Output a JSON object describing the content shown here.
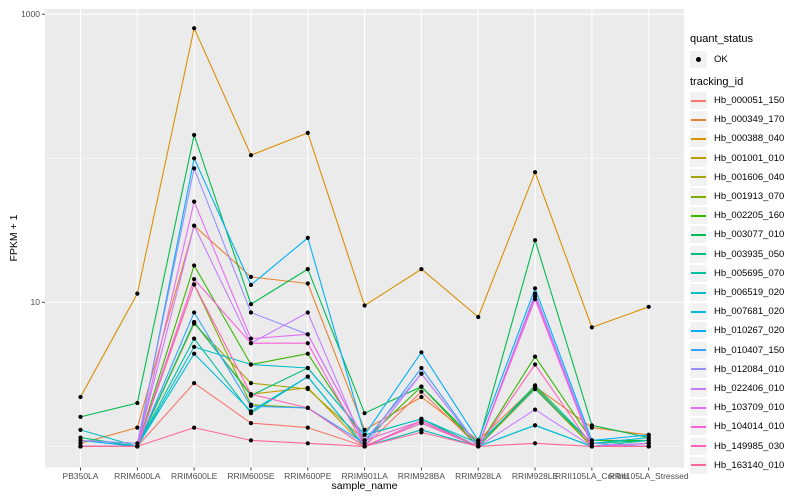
{
  "figure": {
    "y_axis_title": "FPKM + 1",
    "x_axis_title": "sample_name",
    "legend_quant_title": "quant_status",
    "legend_quant_ok_label": "OK",
    "legend_tracking_title": "tracking_id"
  },
  "colors": {
    "panel_background": "#EBEBEB",
    "gridline": "#FFFFFF",
    "tick_mark": "#333333",
    "tick_label": "#4d4d4d",
    "legend_key_background": "#F2F2F2",
    "point": "#000000"
  },
  "chart_data": {
    "type": "line",
    "title": "",
    "xlabel": "sample_name",
    "ylabel": "FPKM + 1",
    "y_scale": "log10",
    "ylim": [
      0.71,
      1100
    ],
    "y_ticks": [
      1000,
      10
    ],
    "y_minor_gridlines": [
      100,
      1
    ],
    "grid": true,
    "legend_position": "right",
    "point_marker": "filled-circle",
    "categories": [
      "PB350LA",
      "RRIM600LA",
      "RRIM600LE",
      "RRIM600SE",
      "RRIM600PE",
      "RRIM901LA",
      "RRIM928BA",
      "RRIM928LA",
      "RRIM928LE",
      "RRII105LA_Control",
      "RRII105LA_Stressed"
    ],
    "series": [
      {
        "name": "Hb_000051_150",
        "color": "#F8766D",
        "values": [
          1.0,
          1.0,
          2.75,
          1.45,
          1.35,
          1.0,
          2.4,
          1.0,
          2.5,
          1.0,
          1.0
        ]
      },
      {
        "name": "Hb_000349_170",
        "color": "#EA8331",
        "values": [
          1.05,
          1.35,
          34,
          15,
          13.5,
          1.3,
          2.2,
          1.1,
          2.6,
          1.35,
          1.2
        ]
      },
      {
        "name": "Hb_000388_040",
        "color": "#D89000",
        "values": [
          2.2,
          11.5,
          800,
          105,
          150,
          9.5,
          17,
          7.9,
          80,
          6.7,
          9.3
        ]
      },
      {
        "name": "Hb_001001_010",
        "color": "#C09B00",
        "values": [
          1.0,
          1.0,
          7.2,
          2.3,
          2.55,
          1.0,
          1.5,
          1.0,
          2.6,
          1.0,
          1.0
        ]
      },
      {
        "name": "Hb_001606_040",
        "color": "#A3A500",
        "values": [
          1.0,
          1.0,
          7.1,
          2.75,
          2.5,
          1.1,
          1.5,
          1.0,
          2.5,
          1.0,
          1.0
        ]
      },
      {
        "name": "Hb_001913_070",
        "color": "#7CAE00",
        "values": [
          1.0,
          1.0,
          13.3,
          1.95,
          1.85,
          1.0,
          1.3,
          1.0,
          2.55,
          1.0,
          1.05
        ]
      },
      {
        "name": "Hb_002205_160",
        "color": "#39B600",
        "values": [
          1.0,
          1.0,
          18,
          3.7,
          4.4,
          1.1,
          2.6,
          1.0,
          4.2,
          1.1,
          1.1
        ]
      },
      {
        "name": "Hb_003077_010",
        "color": "#00BB4E",
        "values": [
          1.6,
          2.0,
          145,
          9.7,
          17,
          1.7,
          2.6,
          1.05,
          27,
          1.4,
          1.15
        ]
      },
      {
        "name": "Hb_003935_050",
        "color": "#00BF7D",
        "values": [
          1.15,
          1.0,
          7.3,
          2.25,
          3.5,
          1.2,
          1.55,
          1.0,
          2.65,
          1.05,
          1.1
        ]
      },
      {
        "name": "Hb_005695_070",
        "color": "#00C1A3",
        "values": [
          1.0,
          1.0,
          5.6,
          1.7,
          3.05,
          1.0,
          1.45,
          1.0,
          1.4,
          1.0,
          1.1
        ]
      },
      {
        "name": "Hb_006519_020",
        "color": "#00BFC4",
        "values": [
          1.3,
          1.0,
          4.9,
          3.7,
          3.5,
          1.2,
          1.55,
          1.05,
          2.5,
          1.05,
          1.15
        ]
      },
      {
        "name": "Hb_007681_020",
        "color": "#00BBDA",
        "values": [
          1.0,
          1.0,
          4.4,
          1.75,
          3.05,
          1.0,
          1.3,
          1.0,
          1.4,
          1.0,
          1.05
        ]
      },
      {
        "name": "Hb_010267_020",
        "color": "#00B0F6",
        "values": [
          1.1,
          1.0,
          100,
          13.2,
          28,
          1.2,
          4.5,
          1.1,
          12.5,
          1.1,
          1.2
        ]
      },
      {
        "name": "Hb_010407_150",
        "color": "#35A2FF",
        "values": [
          1.0,
          1.0,
          8.5,
          1.9,
          1.85,
          1.05,
          3.5,
          1.0,
          11,
          1.0,
          1.0
        ]
      },
      {
        "name": "Hb_012084_010",
        "color": "#9590FF",
        "values": [
          1.1,
          1.05,
          85,
          8.5,
          6.0,
          1.1,
          3.2,
          1.0,
          11.5,
          1.05,
          1.0
        ]
      },
      {
        "name": "Hb_022406_010",
        "color": "#C77CFF",
        "values": [
          1.0,
          1.0,
          34,
          5.2,
          8.5,
          1.0,
          3.2,
          1.0,
          1.8,
          1.0,
          1.0
        ]
      },
      {
        "name": "Hb_103709_010",
        "color": "#E76BF3",
        "values": [
          1.0,
          1.0,
          50,
          5.6,
          6.0,
          1.1,
          1.5,
          1.0,
          11,
          1.0,
          1.05
        ]
      },
      {
        "name": "Hb_104014_010",
        "color": "#FA62DB",
        "values": [
          1.0,
          1.0,
          14.5,
          5.2,
          5.2,
          1.0,
          1.5,
          1.0,
          10.5,
          1.0,
          1.0
        ]
      },
      {
        "name": "Hb_149985_030",
        "color": "#FF62BC",
        "values": [
          1.0,
          1.0,
          13.3,
          2.3,
          1.85,
          1.0,
          1.45,
          1.0,
          3.7,
          1.0,
          1.0
        ]
      },
      {
        "name": "Hb_163140_010",
        "color": "#FF6A98",
        "values": [
          1.0,
          1.0,
          1.35,
          1.1,
          1.05,
          1.0,
          1.25,
          1.0,
          1.05,
          1.0,
          1.0
        ]
      }
    ]
  }
}
